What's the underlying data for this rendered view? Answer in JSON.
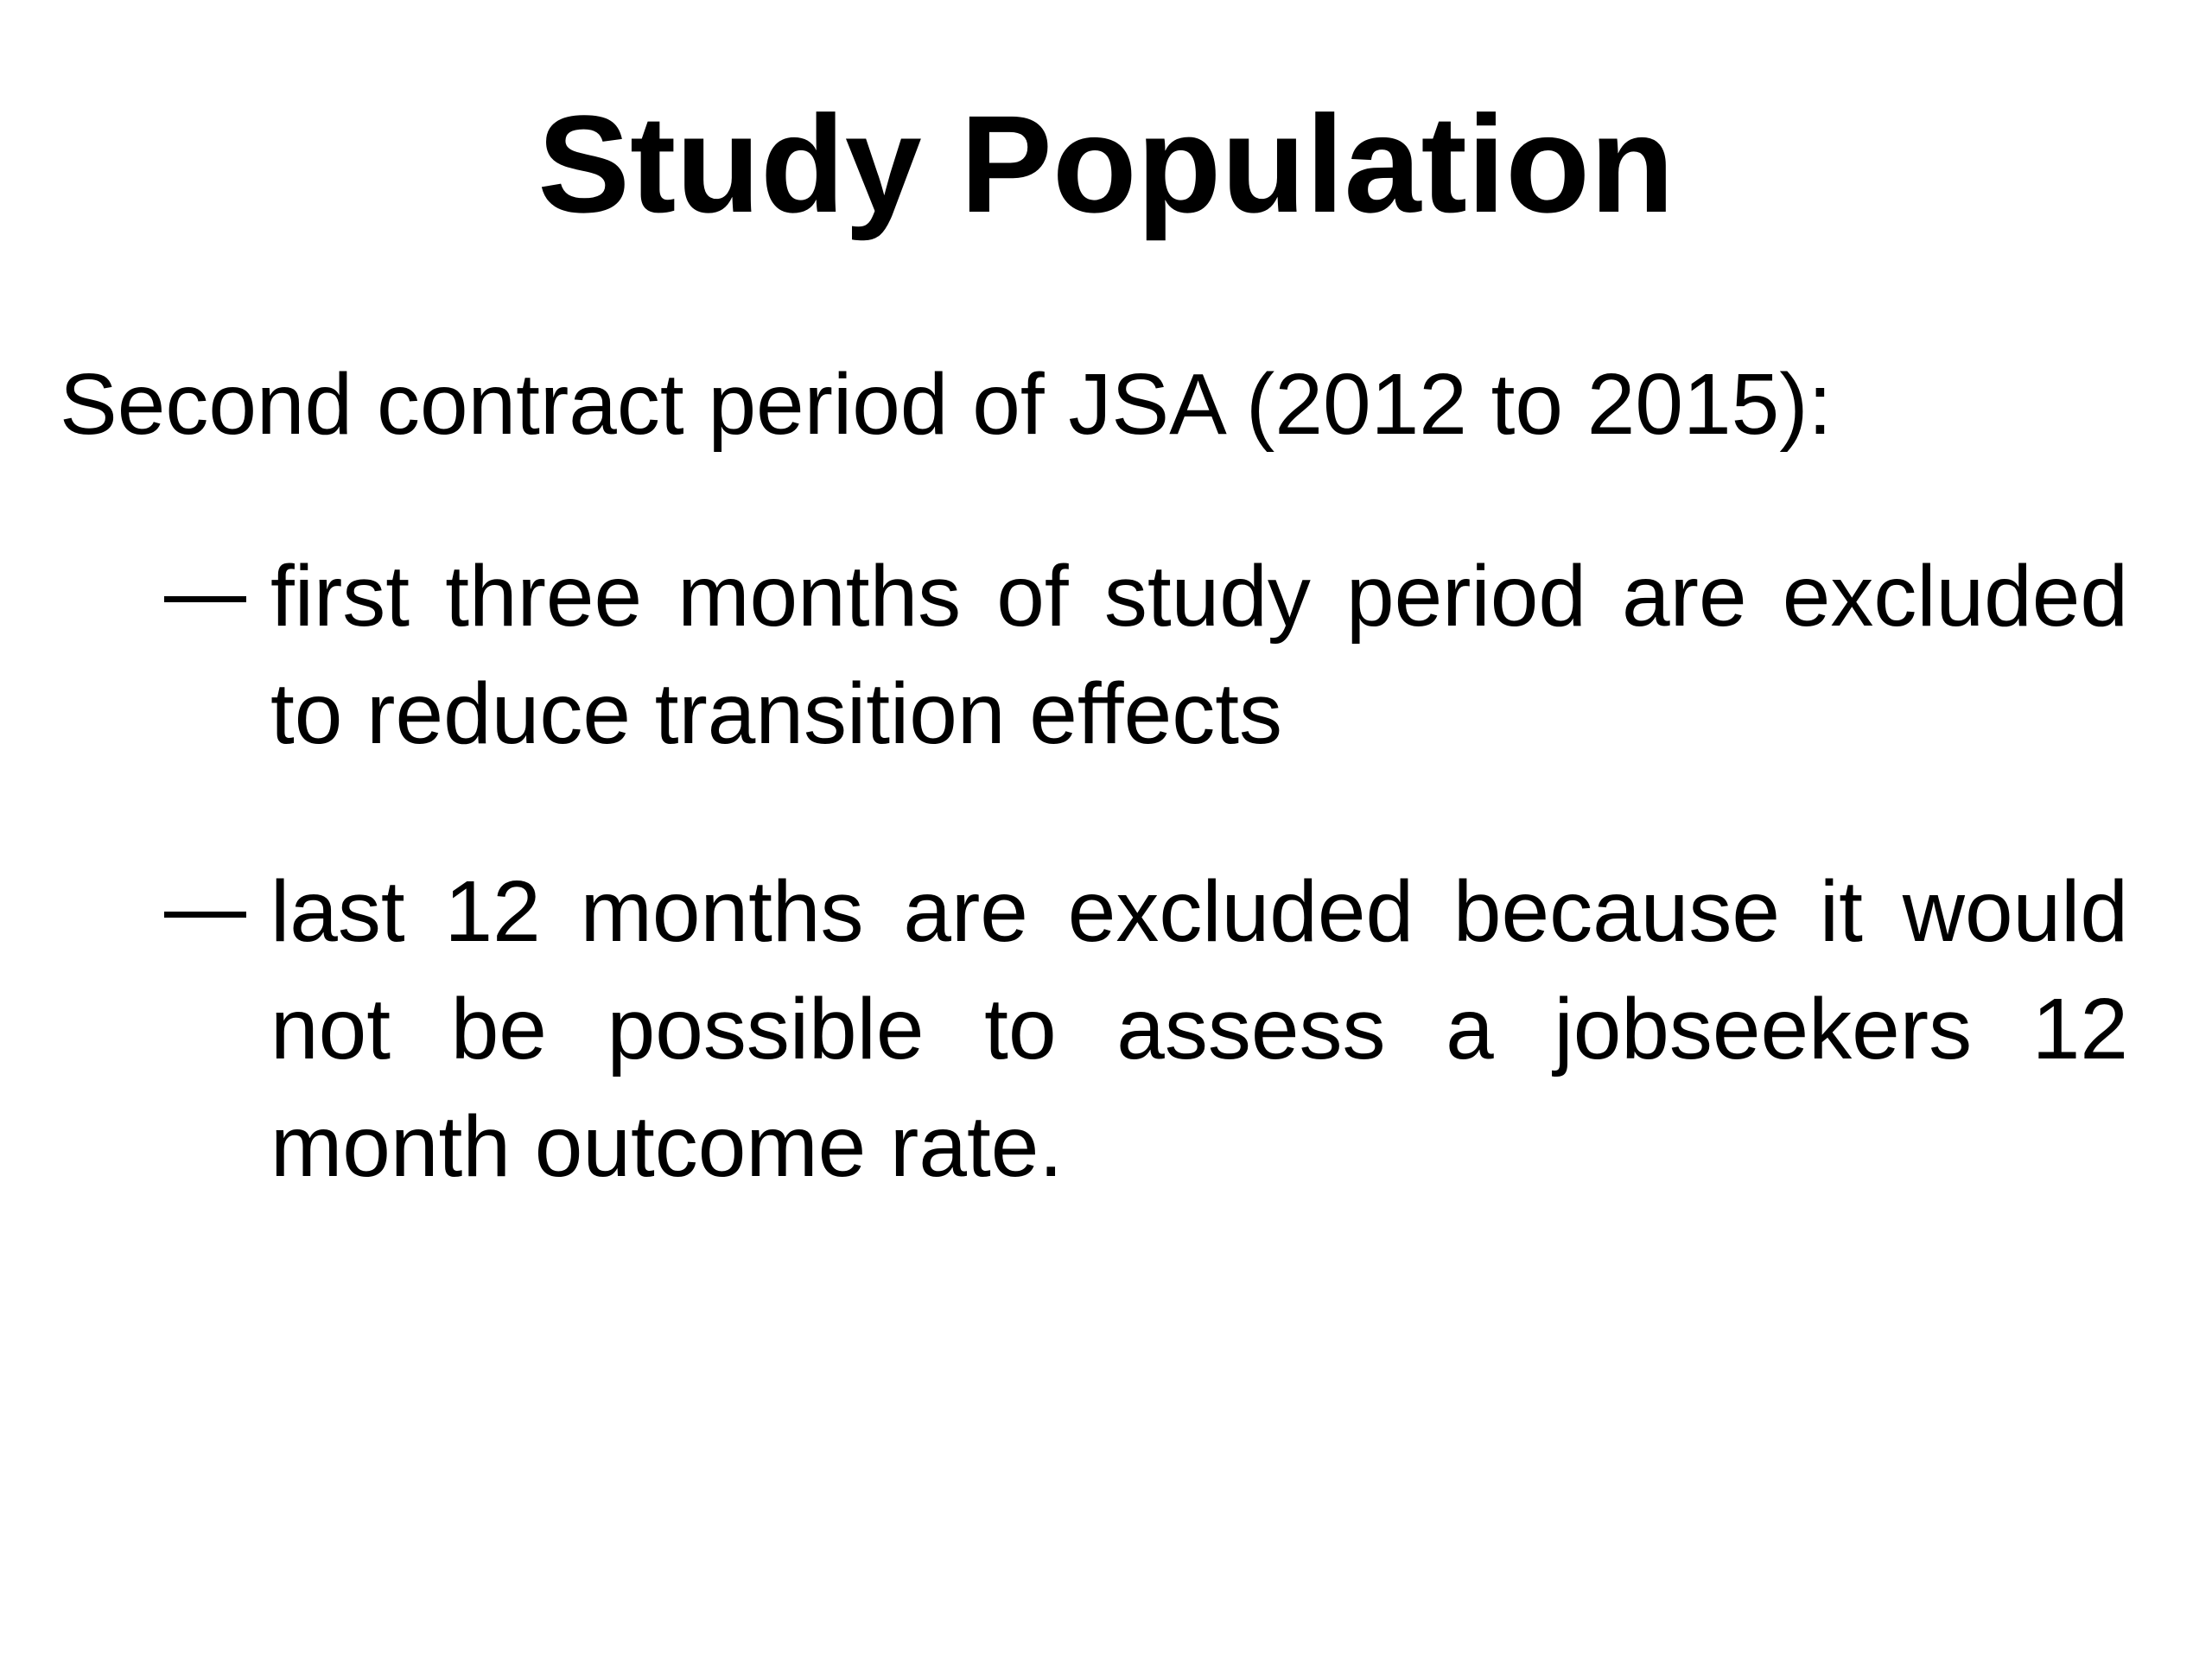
{
  "slide": {
    "title": "Study Population",
    "intro": "Second contract period of JSA (2012 to 2015):",
    "bullets": [
      "first three months of study period are excluded to reduce transition effects",
      "last 12 months are excluded because it would not be possible to assess a jobseekers 12 month outcome rate."
    ]
  }
}
